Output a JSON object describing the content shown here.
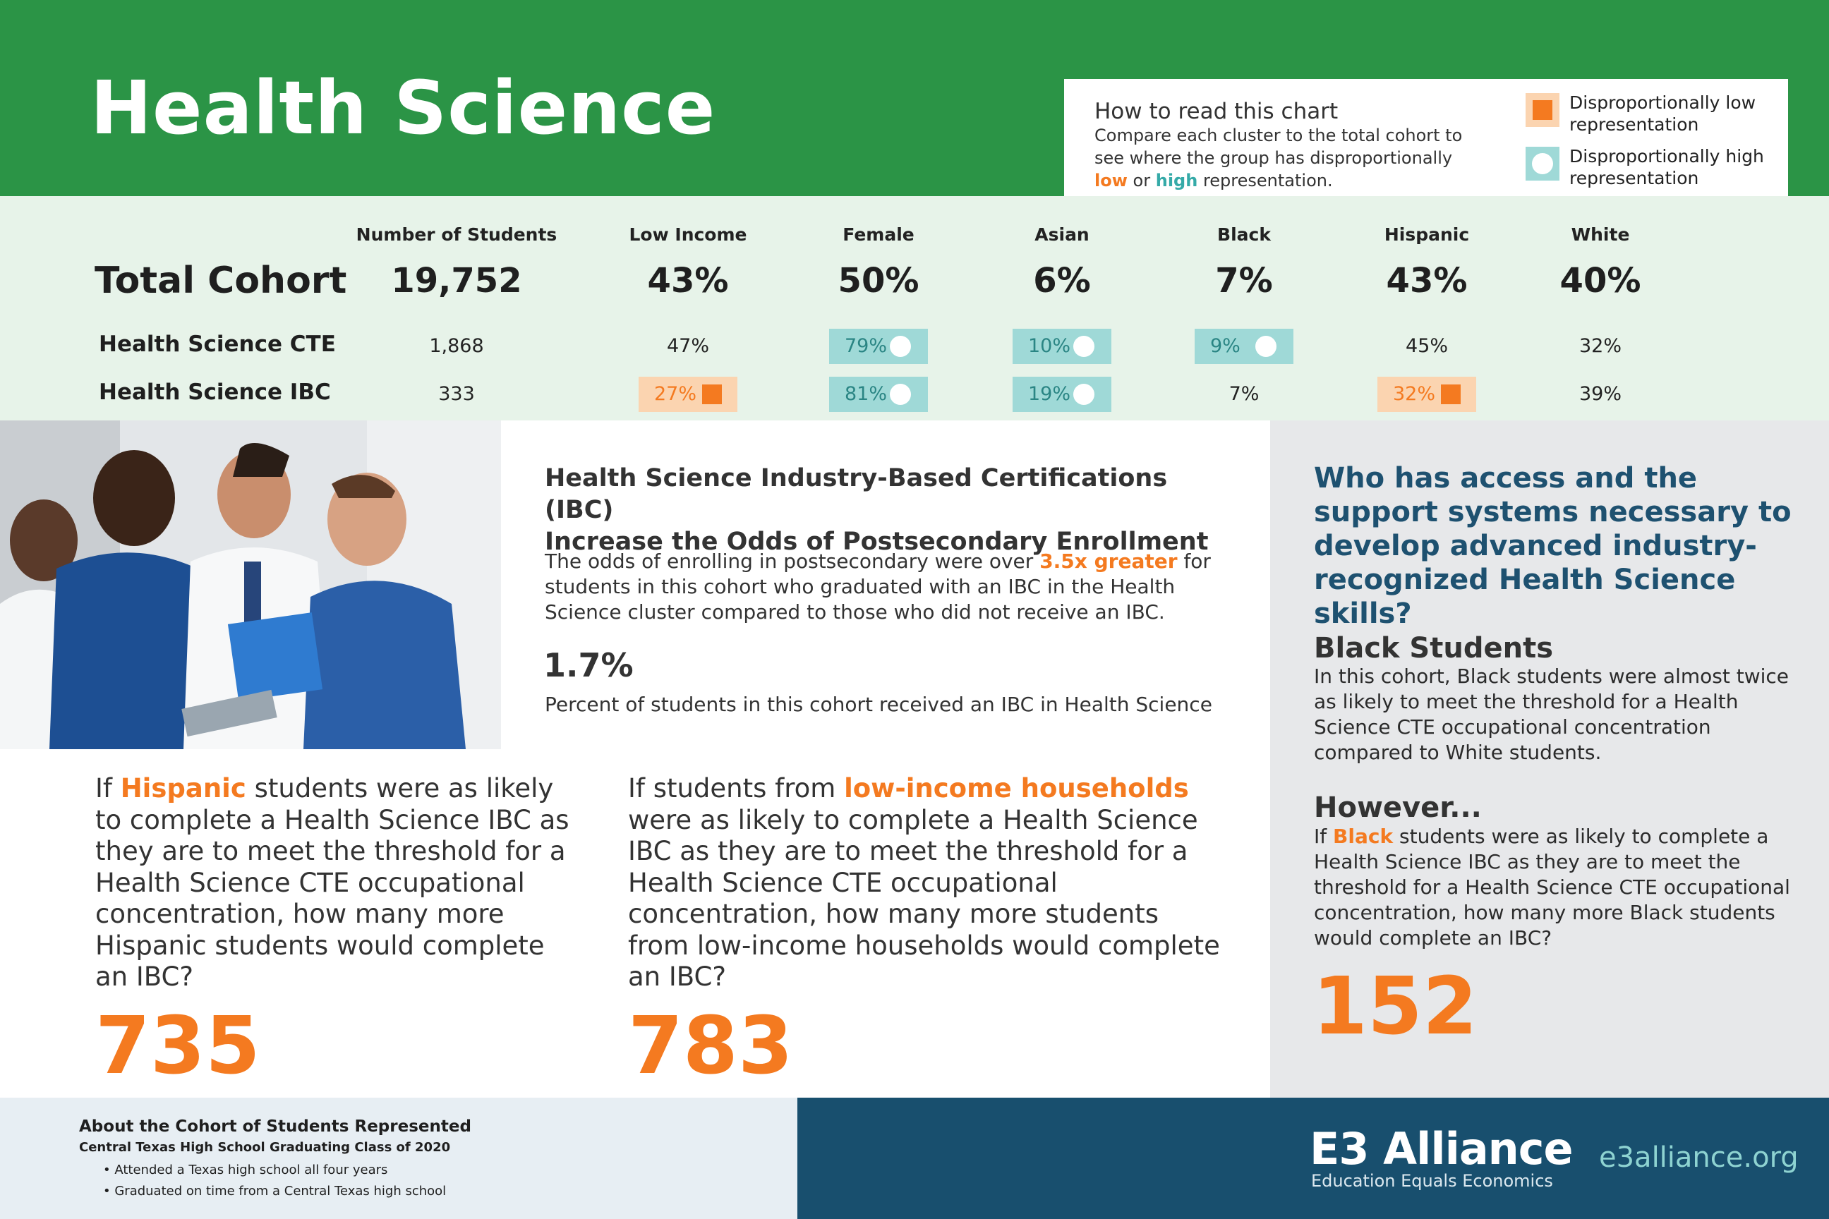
{
  "header": {
    "title": "Health Science"
  },
  "legend": {
    "heading": "How to read this chart",
    "body_pre": "Compare each cluster to the total cohort to see where the group has disproportionally",
    "low_word": "low",
    "or_word": "or",
    "high_word": "high",
    "body_post": "representation.",
    "low_label": "Disproportionally low representation",
    "high_label": "Disproportionally high representation"
  },
  "table": {
    "columns": [
      "Number of Students",
      "Low Income",
      "Female",
      "Asian",
      "Black",
      "Hispanic",
      "White"
    ],
    "total": {
      "label": "Total Cohort",
      "values": [
        "19,752",
        "43%",
        "50%",
        "6%",
        "7%",
        "43%",
        "40%"
      ]
    },
    "rows": [
      {
        "label": "Health Science CTE",
        "cells": [
          {
            "value": "1,868",
            "flag": "none"
          },
          {
            "value": "47%",
            "flag": "none"
          },
          {
            "value": "79%",
            "flag": "high"
          },
          {
            "value": "10%",
            "flag": "high"
          },
          {
            "value": "9%",
            "flag": "high"
          },
          {
            "value": "45%",
            "flag": "none"
          },
          {
            "value": "32%",
            "flag": "none"
          }
        ]
      },
      {
        "label": "Health Science IBC",
        "cells": [
          {
            "value": "333",
            "flag": "none"
          },
          {
            "value": "27%",
            "flag": "low"
          },
          {
            "value": "81%",
            "flag": "high"
          },
          {
            "value": "19%",
            "flag": "high"
          },
          {
            "value": "7%",
            "flag": "none"
          },
          {
            "value": "32%",
            "flag": "low"
          },
          {
            "value": "39%",
            "flag": "none"
          }
        ]
      }
    ]
  },
  "ibc": {
    "heading_line1": "Health Science Industry-Based Certifications (IBC)",
    "heading_line2": "Increase the Odds of Postsecondary Enrollment",
    "body_pre": "The odds of enrolling in postsecondary were over",
    "body_highlight": "3.5x greater",
    "body_post": "for students in this cohort who graduated with an IBC in the Health Science cluster compared to those who did not receive an IBC.",
    "stat": "1.7%",
    "stat_label": "Percent of students in this cohort received an IBC in Health Science"
  },
  "questions": [
    {
      "pre": "If",
      "highlight": "Hispanic",
      "post": "students were as likely to complete a Health Science IBC as they are to meet the threshold for a Health Science CTE occupational concentration, how many more Hispanic students would complete an IBC?",
      "number": "735"
    },
    {
      "pre": "If students from",
      "highlight": "low-income households",
      "post": "were as likely to complete a Health Science IBC as they are to meet the threshold for a Health Science CTE occupational concentration, how many more students from low-income households would complete an IBC?",
      "number": "783"
    }
  ],
  "right_panel": {
    "question": "Who has access and the support systems necessary to develop advanced industry-recognized Health Science skills?",
    "black_heading": "Black Students",
    "black_body": "In this cohort, Black students were almost twice as likely to meet the threshold for a Health Science CTE occupational concentration compared to White students.",
    "however_heading": "However...",
    "however_pre": "If",
    "however_highlight": "Black",
    "however_post": "students were as likely to complete a Health Science IBC as they are to meet the threshold for a Health Science CTE occupational concentration, how many more Black students would complete an IBC?",
    "number": "152"
  },
  "footer": {
    "heading": "About the Cohort of Students Represented",
    "subheading": "Central Texas High School Graduating Class of 2020",
    "bullets": [
      "Attended a Texas high school all four years",
      "Graduated on time from a Central Texas high school"
    ],
    "brand": "E3 Alliance",
    "tagline": "Education Equals Economics",
    "url": "e3alliance.org"
  },
  "colors": {
    "green": "#2b9446",
    "orange": "#f47a20",
    "teal": "#9fd9d7",
    "navy": "#184f6e"
  }
}
